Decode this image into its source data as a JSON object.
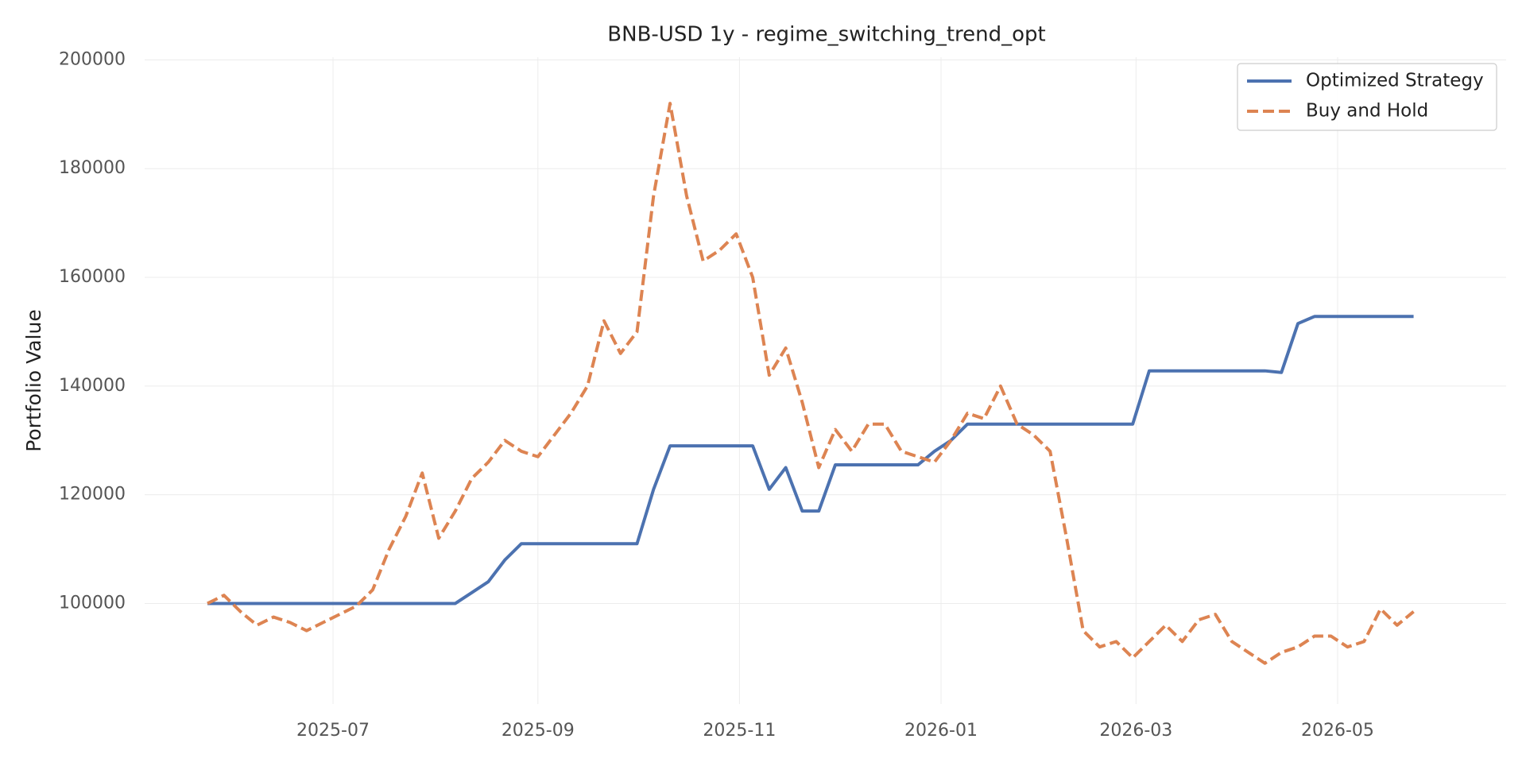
{
  "chart_data": {
    "type": "line",
    "title": "BNB-USD 1y - regime_switching_trend_opt",
    "y_label": "Portfolio Value",
    "x": [
      20232,
      20237,
      20242,
      20247,
      20252,
      20257,
      20262,
      20267,
      20272,
      20277,
      20282,
      20287,
      20292,
      20297,
      20302,
      20307,
      20312,
      20317,
      20322,
      20327,
      20332,
      20337,
      20342,
      20347,
      20352,
      20357,
      20362,
      20367,
      20372,
      20377,
      20382,
      20387,
      20392,
      20397,
      20402,
      20407,
      20412,
      20417,
      20422,
      20427,
      20432,
      20437,
      20442,
      20447,
      20452,
      20457,
      20462,
      20467,
      20472,
      20477,
      20482,
      20487,
      20492,
      20497,
      20502,
      20507,
      20512,
      20517,
      20522,
      20527,
      20532,
      20537,
      20542,
      20547,
      20552,
      20557,
      20562,
      20567,
      20572,
      20577,
      20582,
      20587,
      20592,
      20597
    ],
    "series": [
      {
        "name": "Optimized Strategy",
        "color": "#4c72b0",
        "dashed": false,
        "values": [
          100000,
          100000,
          100000,
          100000,
          100000,
          100000,
          100000,
          100000,
          100000,
          100000,
          100000,
          100000,
          100000,
          100000,
          100000,
          100000,
          102000,
          104000,
          108000,
          111000,
          111000,
          111000,
          111000,
          111000,
          111000,
          111000,
          111000,
          121000,
          129000,
          129000,
          129000,
          129000,
          129000,
          129000,
          121000,
          125000,
          117000,
          117000,
          125500,
          125500,
          125500,
          125500,
          125500,
          125500,
          128000,
          130000,
          133000,
          133000,
          133000,
          133000,
          133000,
          133000,
          133000,
          133000,
          133000,
          133000,
          133000,
          142800,
          142800,
          142800,
          142800,
          142800,
          142800,
          142800,
          142800,
          142500,
          151500,
          152800,
          152800,
          152800,
          152800,
          152800,
          152800,
          152800
        ]
      },
      {
        "name": "Buy and Hold",
        "color": "#dd8452",
        "dashed": true,
        "values": [
          100000,
          101500,
          98500,
          96000,
          97500,
          96500,
          95000,
          96500,
          98000,
          99500,
          102500,
          110000,
          116000,
          124000,
          112000,
          117000,
          123000,
          126000,
          130000,
          128000,
          127000,
          131000,
          135000,
          140000,
          152000,
          146000,
          150000,
          175000,
          192000,
          175000,
          163000,
          165000,
          168000,
          160000,
          142000,
          147000,
          137000,
          125000,
          132000,
          128000,
          133000,
          133000,
          128000,
          127000,
          126000,
          130000,
          135000,
          134000,
          140000,
          133000,
          131000,
          128000,
          112000,
          95000,
          92000,
          93000,
          90000,
          93000,
          96000,
          93000,
          97000,
          98000,
          93000,
          91000,
          89000,
          91000,
          92000,
          94000,
          94000,
          92000,
          93000,
          99000,
          96000,
          98500
        ]
      }
    ],
    "xlim": [
      20213,
      20625
    ],
    "xticks": [
      {
        "value": 20270,
        "label": "2025-07"
      },
      {
        "value": 20332,
        "label": "2025-09"
      },
      {
        "value": 20393,
        "label": "2025-11"
      },
      {
        "value": 20454,
        "label": "2026-01"
      },
      {
        "value": 20513,
        "label": "2026-03"
      },
      {
        "value": 20574,
        "label": "2026-05"
      }
    ],
    "ylim": [
      81500,
      200500
    ],
    "yticks": [
      100000,
      120000,
      140000,
      160000,
      180000,
      200000
    ],
    "grid": true,
    "legend": "upper-right"
  }
}
